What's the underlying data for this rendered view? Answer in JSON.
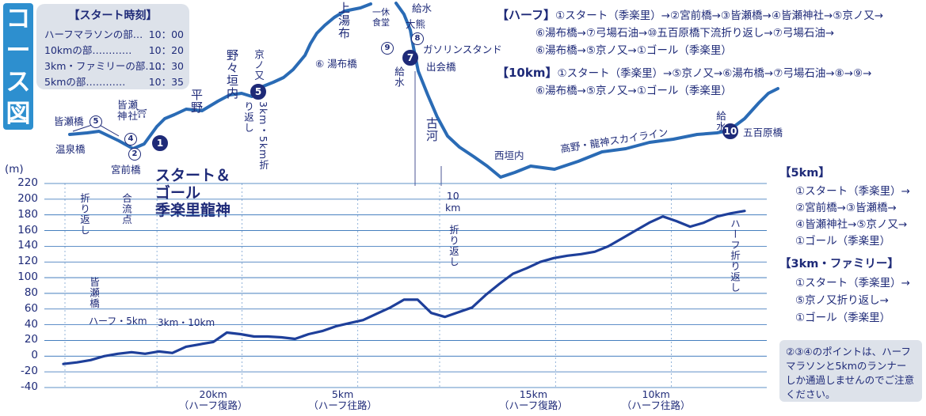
{
  "title_chars": [
    "コ",
    "ー",
    "ス",
    "図"
  ],
  "start_times": {
    "title": "【スタート時刻】",
    "rows": [
      {
        "label": "ハーフマラソンの部",
        "dots": "…",
        "time": "10：00"
      },
      {
        "label": "10kmの部",
        "dots": "…………",
        "time": "10：20"
      },
      {
        "label": "3km・ファミリーの部",
        "dots": "……",
        "time": "10：30"
      },
      {
        "label": "5kmの部",
        "dots": "…………",
        "time": "10：35"
      }
    ]
  },
  "routes": {
    "half": {
      "head": "【ハーフ】",
      "lines": [
        "①スタート（季楽里）→②宮前橋→③皆瀬橋→④皆瀬神社→⑤京ノ又→",
        "⑥湯布橋→⑦弓場石油→⑩五百原橋下流折り返し→⑦弓場石油→",
        "⑥湯布橋→⑤京ノ又→①ゴール（季楽里）"
      ]
    },
    "tenk": {
      "head": "【10km】",
      "lines": [
        "①スタート（季楽里）→⑤京ノ又→⑥湯布橋→⑦弓場石油→⑧→⑨→",
        "⑥湯布橋→⑤京ノ又→①ゴール（季楽里）"
      ]
    },
    "fivek": {
      "head": "【5km】",
      "lines": [
        "①スタート（季楽里）→",
        "②宮前橋→③皆瀬橋→",
        "④皆瀬神社→⑤京ノ又→",
        "①ゴール（季楽里）"
      ]
    },
    "threek": {
      "head": "【3km・ファミリー】",
      "lines": [
        "①スタート（季楽里）→",
        "⑤京ノ又折り返し→",
        "①ゴール（季楽里）"
      ]
    }
  },
  "note": {
    "lines": [
      "②③④のポイントは、ハーフ",
      "マラソンと5kmのランナー",
      "しか通過しませんのでご注意",
      "ください。"
    ]
  },
  "map_labels": {
    "minase_bashi": "皆瀬橋",
    "onsen_bashi": "温泉橋",
    "miyamae_bashi": "宮前橋",
    "minase_jinja": "皆瀬神社",
    "shrine_mark": "⛩",
    "hirano": "平野",
    "nonogakiuchi": "野々垣内",
    "kyonomata": "京ノ又",
    "turn_3km": "3km・5km折り返し",
    "yufu_bashi": "⑥ 湯布橋",
    "kamiyuno": "上湯布",
    "ikkyu": "一休食堂",
    "kyusui_top": "給水",
    "okuma": "大熊",
    "gas_station": "ガソリンスタンド",
    "deai_bashi": "出会橋",
    "kyusui_mid": "給水",
    "furukawa": "古河",
    "nishigakiuchi": "西垣内",
    "skyline": "高野・龍神スカイライン",
    "kyusui_right": "給水",
    "iohara_bashi": "五百原橋",
    "start_goal": [
      "スタート＆",
      "ゴール",
      "季楽里龍神"
    ],
    "checkpoints": [
      "1",
      "2",
      "3",
      "4",
      "5",
      "7",
      "8",
      "9",
      "10"
    ]
  },
  "chart_data": {
    "type": "line",
    "ylabel": "(m)",
    "ylim": [
      -40,
      220
    ],
    "yticks": [
      220,
      200,
      180,
      160,
      140,
      120,
      100,
      80,
      60,
      40,
      20,
      0,
      -20,
      -40
    ],
    "x_labels": [
      {
        "km": "20km",
        "sub": "（ハーフ復路）"
      },
      {
        "km": "5km",
        "sub": "（ハーフ往路）"
      },
      {
        "km": "15km",
        "sub": "（ハーフ復路）"
      },
      {
        "km": "10km",
        "sub": "（ハーフ往路）"
      }
    ],
    "annotations": {
      "orikaeshi_left": "折り返し",
      "goryuten": "合流点",
      "minase_bashi": "皆瀬橋",
      "half_5km": "ハーフ・5km",
      "three_10km": "3km・10km",
      "tenk_turn": [
        "10",
        "km",
        "折り返し"
      ],
      "half_turn": "ハーフ折り返し"
    },
    "series": [
      {
        "x": [
          0.0,
          0.02,
          0.04,
          0.06,
          0.08,
          0.1,
          0.12,
          0.14,
          0.16,
          0.18,
          0.2,
          0.22,
          0.24,
          0.26,
          0.28,
          0.3,
          0.32,
          0.34,
          0.36,
          0.38,
          0.4,
          0.42,
          0.44,
          0.46,
          0.48,
          0.5,
          0.52,
          0.54,
          0.56,
          0.58,
          0.6,
          0.62,
          0.64,
          0.66,
          0.68,
          0.7,
          0.72,
          0.74,
          0.76,
          0.78,
          0.8,
          0.82,
          0.84,
          0.86,
          0.88,
          0.9,
          0.92,
          0.94,
          0.96,
          0.98,
          1.0
        ],
        "values": [
          -10,
          -8,
          -5,
          0,
          3,
          5,
          3,
          6,
          4,
          12,
          15,
          18,
          30,
          28,
          25,
          25,
          24,
          22,
          28,
          32,
          38,
          42,
          46,
          54,
          62,
          72,
          72,
          55,
          50,
          56,
          62,
          78,
          92,
          105,
          112,
          120,
          125,
          128,
          130,
          133,
          140,
          150,
          160,
          170,
          178,
          172,
          165,
          170,
          178,
          182,
          185
        ]
      }
    ]
  }
}
